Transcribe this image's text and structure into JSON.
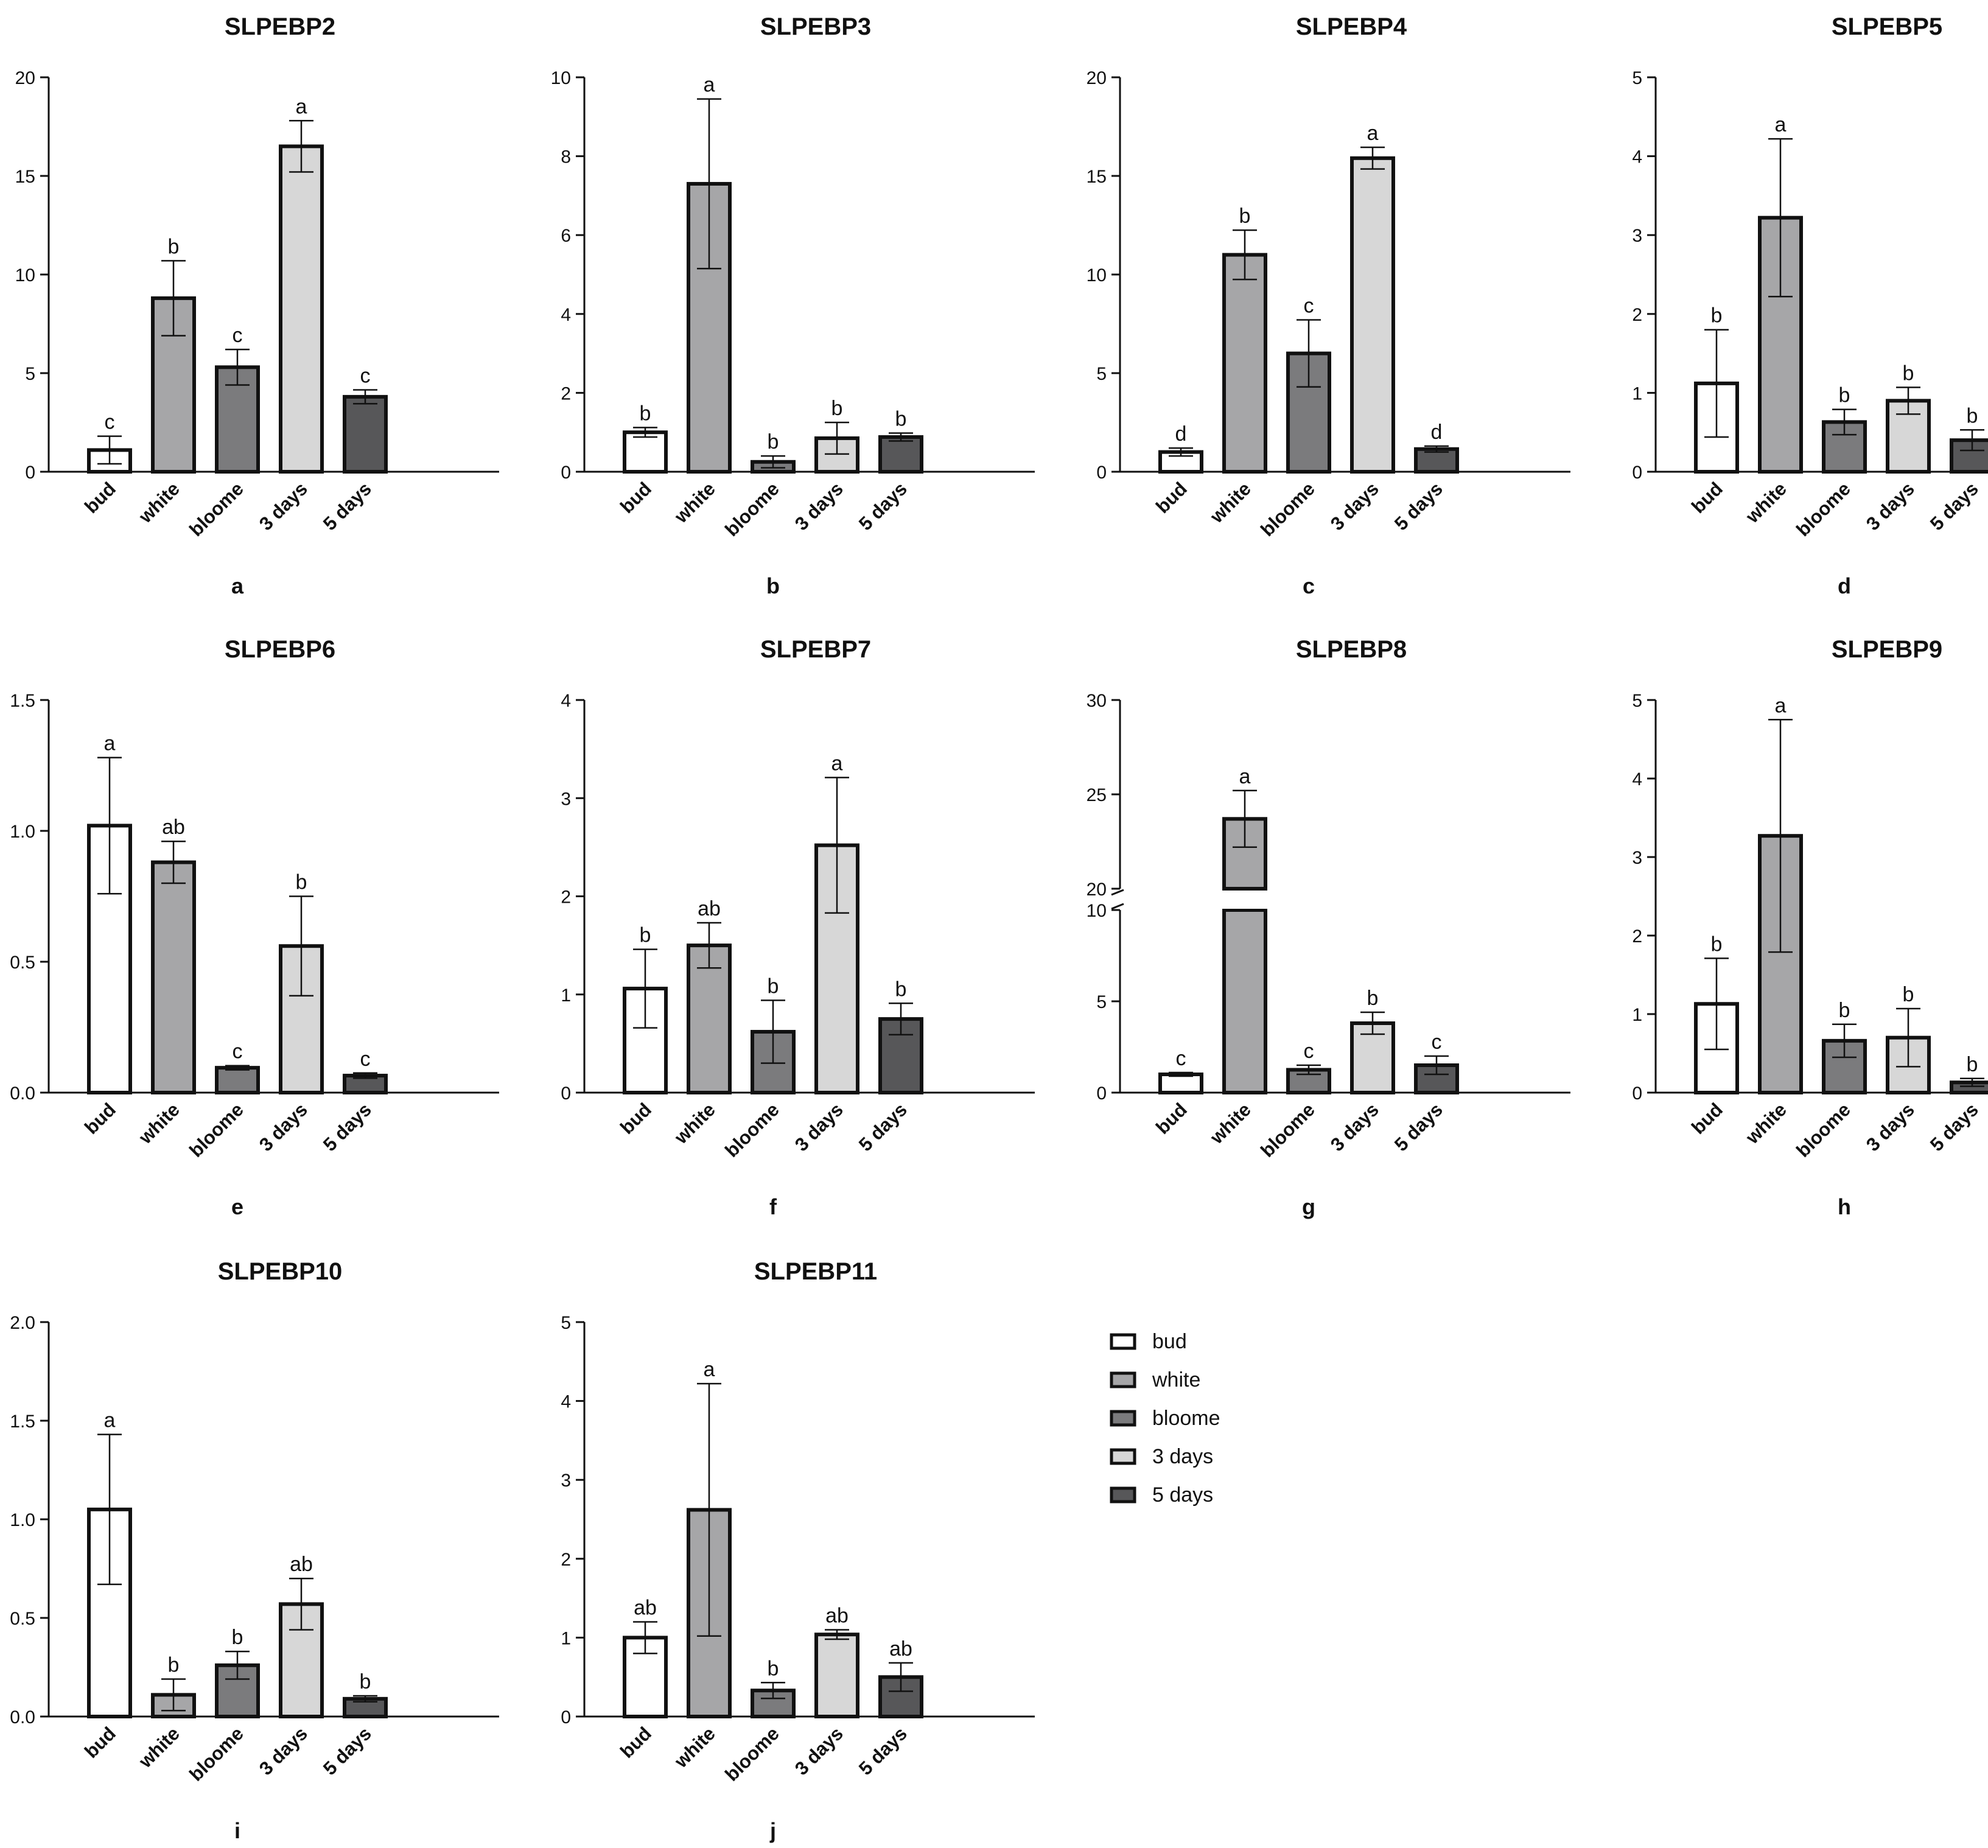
{
  "categories": [
    "bud",
    "white",
    "bloome",
    "3 days",
    "5 days"
  ],
  "colors": {
    "bud": "#ffffff",
    "white": "#a6a6a8",
    "bloome": "#7b7b7d",
    "3 days": "#d7d7d7",
    "5 days": "#575759",
    "edge": "#111111"
  },
  "legend": [
    "bud",
    "white",
    "bloome",
    "3 days",
    "5 days"
  ],
  "chart_data": [
    {
      "type": "bar",
      "title": "SLPEBP2",
      "panel": "a",
      "ylim": [
        0,
        20
      ],
      "yticks": [
        0,
        5,
        10,
        15,
        20
      ],
      "values": [
        1.1,
        8.8,
        5.3,
        16.5,
        3.8
      ],
      "errors": [
        0.7,
        1.9,
        0.9,
        1.3,
        0.35
      ],
      "letters": [
        "c",
        "b",
        "c",
        "a",
        "c"
      ]
    },
    {
      "type": "bar",
      "title": "SLPEBP3",
      "panel": "b",
      "ylim": [
        0,
        10
      ],
      "yticks": [
        0,
        2,
        4,
        6,
        8,
        10
      ],
      "values": [
        1.0,
        7.3,
        0.25,
        0.85,
        0.88
      ],
      "errors": [
        0.12,
        2.15,
        0.15,
        0.4,
        0.1
      ],
      "letters": [
        "b",
        "a",
        "b",
        "b",
        "b"
      ]
    },
    {
      "type": "bar",
      "title": "SLPEBP4",
      "panel": "c",
      "ylim": [
        0,
        20
      ],
      "yticks": [
        0,
        5,
        10,
        15,
        20
      ],
      "values": [
        1.0,
        11.0,
        6.0,
        15.9,
        1.15
      ],
      "errors": [
        0.2,
        1.25,
        1.7,
        0.55,
        0.15
      ],
      "letters": [
        "d",
        "b",
        "c",
        "a",
        "d"
      ]
    },
    {
      "type": "bar",
      "title": "SLPEBP5",
      "panel": "d",
      "ylim": [
        0,
        5
      ],
      "yticks": [
        0,
        1,
        2,
        3,
        4,
        5
      ],
      "values": [
        1.12,
        3.22,
        0.63,
        0.9,
        0.4
      ],
      "errors": [
        0.68,
        1.0,
        0.16,
        0.17,
        0.13
      ],
      "letters": [
        "b",
        "a",
        "b",
        "b",
        "b"
      ]
    },
    {
      "type": "bar",
      "title": "SLPEBP6",
      "panel": "e",
      "ylim": [
        0,
        1.5
      ],
      "yticks": [
        "0.0",
        "0.5",
        "1.0",
        "1.5"
      ],
      "values": [
        1.02,
        0.88,
        0.095,
        0.56,
        0.065
      ],
      "errors": [
        0.26,
        0.08,
        0.008,
        0.19,
        0.01
      ],
      "letters": [
        "a",
        "ab",
        "c",
        "b",
        "c"
      ]
    },
    {
      "type": "bar",
      "title": "SLPEBP7",
      "panel": "f",
      "ylim": [
        0,
        4
      ],
      "yticks": [
        0,
        1,
        2,
        3,
        4
      ],
      "values": [
        1.06,
        1.5,
        0.62,
        2.52,
        0.75
      ],
      "errors": [
        0.4,
        0.23,
        0.32,
        0.69,
        0.16
      ],
      "letters": [
        "b",
        "ab",
        "b",
        "a",
        "b"
      ]
    },
    {
      "type": "bar",
      "title": "SLPEBP8",
      "panel": "g",
      "ylim": [
        0,
        30
      ],
      "axis_break": [
        10,
        20
      ],
      "yticks_lower": [
        0,
        5,
        10
      ],
      "yticks_upper": [
        20,
        25,
        30
      ],
      "values": [
        1.0,
        23.7,
        1.25,
        3.8,
        1.5
      ],
      "errors": [
        0.1,
        1.5,
        0.25,
        0.6,
        0.5
      ],
      "letters": [
        "c",
        "a",
        "c",
        "b",
        "c"
      ]
    },
    {
      "type": "bar",
      "title": "SLPEBP9",
      "panel": "h",
      "ylim": [
        0,
        5
      ],
      "yticks": [
        0,
        1,
        2,
        3,
        4,
        5
      ],
      "values": [
        1.13,
        3.27,
        0.66,
        0.7,
        0.13
      ],
      "errors": [
        0.58,
        1.48,
        0.21,
        0.37,
        0.05
      ],
      "letters": [
        "b",
        "a",
        "b",
        "b",
        "b"
      ]
    },
    {
      "type": "bar",
      "title": "SLPEBP10",
      "panel": "i",
      "ylim": [
        0,
        2.0
      ],
      "yticks": [
        "0.0",
        "0.5",
        "1.0",
        "1.5",
        "2.0"
      ],
      "values": [
        1.05,
        0.11,
        0.26,
        0.57,
        0.09
      ],
      "errors": [
        0.38,
        0.08,
        0.07,
        0.13,
        0.015
      ],
      "letters": [
        "a",
        "b",
        "b",
        "ab",
        "b"
      ]
    },
    {
      "type": "bar",
      "title": "SLPEBP11",
      "panel": "j",
      "ylim": [
        0,
        5
      ],
      "yticks": [
        0,
        1,
        2,
        3,
        4,
        5
      ],
      "values": [
        1.0,
        2.62,
        0.33,
        1.04,
        0.5
      ],
      "errors": [
        0.2,
        1.6,
        0.1,
        0.06,
        0.18
      ],
      "letters": [
        "ab",
        "a",
        "b",
        "ab",
        "ab"
      ]
    }
  ]
}
